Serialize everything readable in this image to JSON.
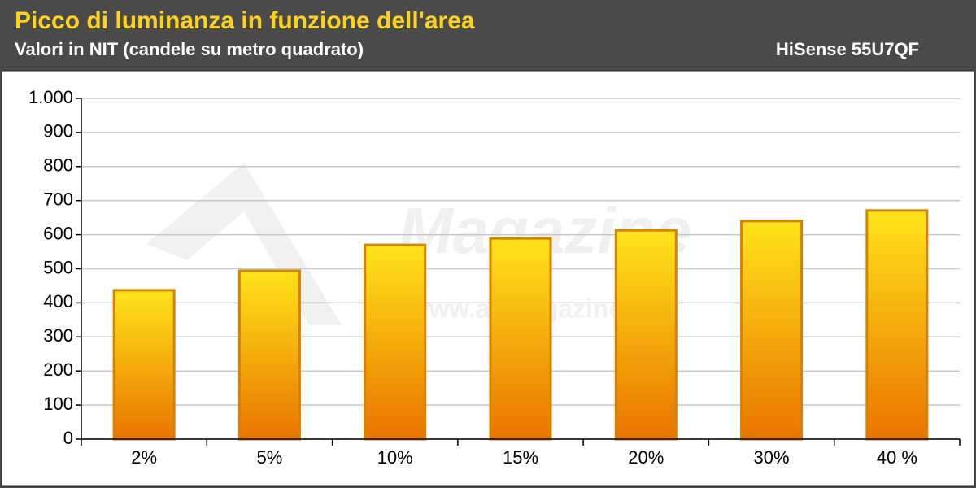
{
  "title": "Picco di luminanza in funzione dell'area",
  "subtitle": "Valori in NIT (candele su metro quadrato)",
  "model": "HiSense 55U7QF",
  "watermark": {
    "logo": "Magazine",
    "url": "© www.avmagazine.it"
  },
  "chart_data": {
    "type": "bar",
    "categories": [
      "2%",
      "5%",
      "10%",
      "15%",
      "20%",
      "30%",
      "40 %"
    ],
    "values": [
      437,
      494,
      570,
      589,
      613,
      640,
      671
    ],
    "color": "#d98200",
    "ylim": [
      0,
      1000
    ],
    "yticks": [
      0,
      100,
      200,
      300,
      400,
      500,
      600,
      700,
      800,
      900,
      {
        "value": 1000,
        "label": "1.000"
      }
    ],
    "grid": true
  }
}
